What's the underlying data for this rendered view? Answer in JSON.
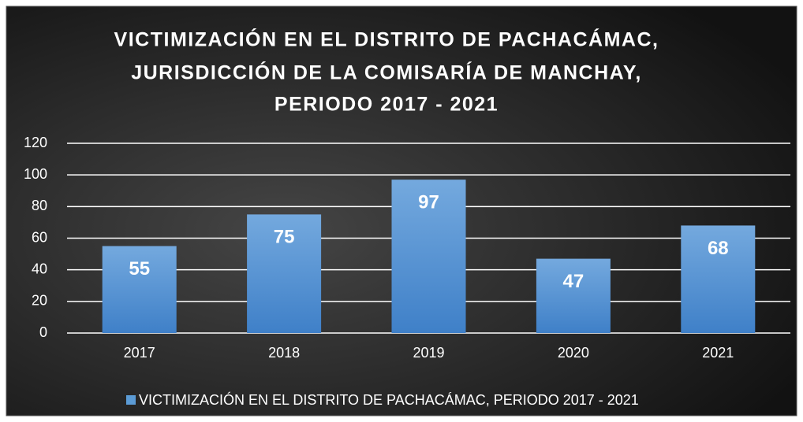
{
  "chart_data": {
    "type": "bar",
    "title": [
      "VICTIMIZACIÓN  EN EL DISTRITO DE  PACHACÁMAC,",
      "JURISDICCIÓN  DE LA COMISARÍA DE MANCHAY,",
      "PERIODO 2017  - 2021"
    ],
    "categories": [
      "2017",
      "2018",
      "2019",
      "2020",
      "2021"
    ],
    "series": [
      {
        "name": "VICTIMIZACIÓN EN EL DISTRITO DE PACHACÁMAC, PERIODO 2017 - 2021",
        "color": "#5b9bd5",
        "values": [
          55,
          75,
          97,
          47,
          68
        ]
      }
    ],
    "ylim": [
      0,
      120
    ],
    "yticks": [
      0,
      20,
      40,
      60,
      80,
      100,
      120
    ],
    "grid": true,
    "legend": "bottom"
  }
}
